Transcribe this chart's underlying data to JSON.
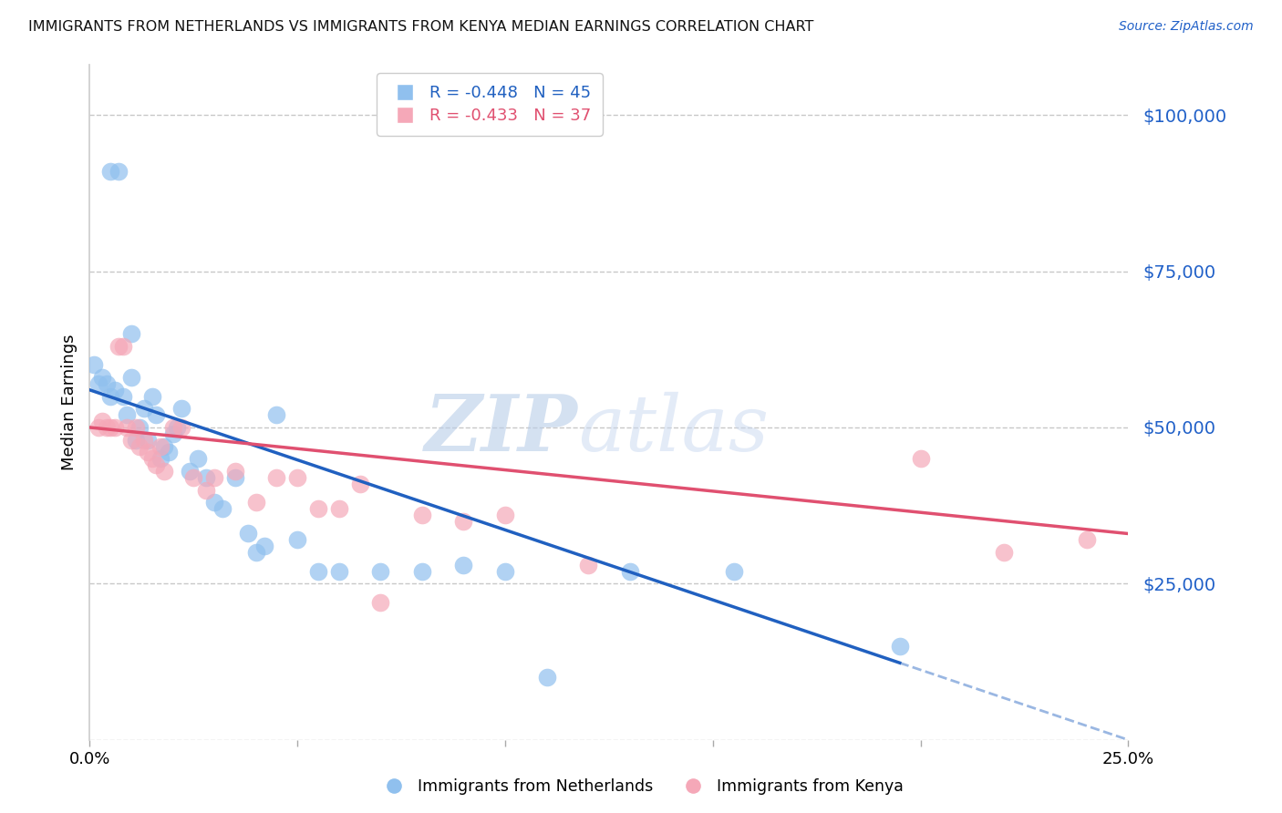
{
  "title": "IMMIGRANTS FROM NETHERLANDS VS IMMIGRANTS FROM KENYA MEDIAN EARNINGS CORRELATION CHART",
  "source": "Source: ZipAtlas.com",
  "ylabel": "Median Earnings",
  "y_ticks": [
    0,
    25000,
    50000,
    75000,
    100000
  ],
  "xlim": [
    0.0,
    0.25
  ],
  "ylim": [
    0,
    108000
  ],
  "watermark_zip": "ZIP",
  "watermark_atlas": "atlas",
  "legend_nl": "R = -0.448   N = 45",
  "legend_ke": "R = -0.433   N = 37",
  "legend_nl_label": "Immigrants from Netherlands",
  "legend_ke_label": "Immigrants from Kenya",
  "nl_color": "#90C0EE",
  "ke_color": "#F5A8B8",
  "nl_line_color": "#2060C0",
  "ke_line_color": "#E05070",
  "background_color": "#FFFFFF",
  "grid_color": "#C8C8C8",
  "nl_scatter_x": [
    0.001,
    0.002,
    0.003,
    0.004,
    0.005,
    0.005,
    0.006,
    0.007,
    0.008,
    0.009,
    0.01,
    0.01,
    0.011,
    0.012,
    0.013,
    0.014,
    0.015,
    0.016,
    0.017,
    0.018,
    0.019,
    0.02,
    0.021,
    0.022,
    0.024,
    0.026,
    0.028,
    0.03,
    0.032,
    0.035,
    0.038,
    0.04,
    0.042,
    0.045,
    0.05,
    0.055,
    0.06,
    0.07,
    0.08,
    0.09,
    0.1,
    0.11,
    0.13,
    0.155,
    0.195
  ],
  "nl_scatter_y": [
    60000,
    57000,
    58000,
    57000,
    91000,
    55000,
    56000,
    91000,
    55000,
    52000,
    58000,
    65000,
    48000,
    50000,
    53000,
    48000,
    55000,
    52000,
    45000,
    47000,
    46000,
    49000,
    50000,
    53000,
    43000,
    45000,
    42000,
    38000,
    37000,
    42000,
    33000,
    30000,
    31000,
    52000,
    32000,
    27000,
    27000,
    27000,
    27000,
    28000,
    27000,
    10000,
    27000,
    27000,
    15000
  ],
  "ke_scatter_x": [
    0.002,
    0.003,
    0.004,
    0.005,
    0.006,
    0.007,
    0.008,
    0.009,
    0.01,
    0.011,
    0.012,
    0.013,
    0.014,
    0.015,
    0.016,
    0.017,
    0.018,
    0.02,
    0.022,
    0.025,
    0.028,
    0.03,
    0.035,
    0.04,
    0.045,
    0.05,
    0.055,
    0.06,
    0.065,
    0.07,
    0.08,
    0.09,
    0.1,
    0.12,
    0.2,
    0.22,
    0.24
  ],
  "ke_scatter_y": [
    50000,
    51000,
    50000,
    50000,
    50000,
    63000,
    63000,
    50000,
    48000,
    50000,
    47000,
    48000,
    46000,
    45000,
    44000,
    47000,
    43000,
    50000,
    50000,
    42000,
    40000,
    42000,
    43000,
    38000,
    42000,
    42000,
    37000,
    37000,
    41000,
    22000,
    36000,
    35000,
    36000,
    28000,
    45000,
    30000,
    32000
  ],
  "nl_line_x0": 0.0,
  "nl_line_y0": 56000,
  "nl_line_x1": 0.25,
  "nl_line_y1": 0,
  "nl_line_solid_end": 0.195,
  "ke_line_x0": 0.0,
  "ke_line_y0": 50000,
  "ke_line_x1": 0.25,
  "ke_line_y1": 33000
}
